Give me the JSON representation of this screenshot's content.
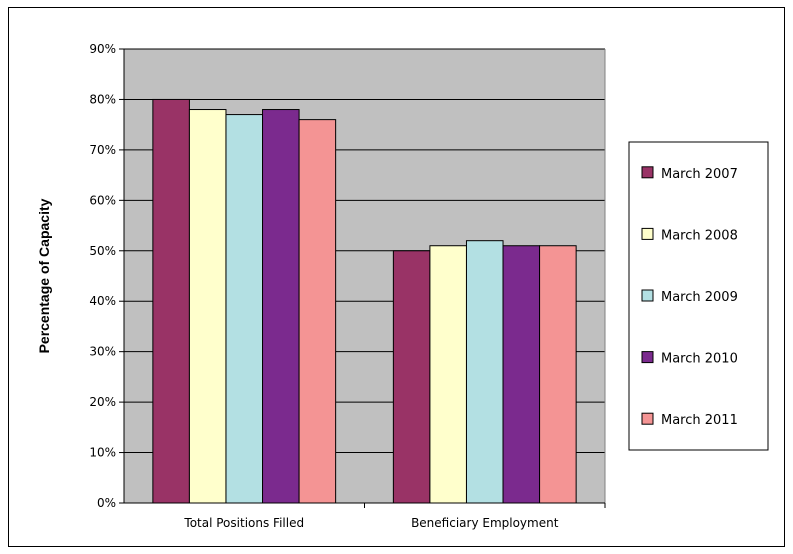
{
  "chart_data": {
    "type": "bar",
    "title": "",
    "xlabel": "",
    "ylabel": "Percentage of Capacity",
    "ylim": [
      0,
      90
    ],
    "yticks": [
      "0%",
      "10%",
      "20%",
      "30%",
      "40%",
      "50%",
      "60%",
      "70%",
      "80%",
      "90%"
    ],
    "categories": [
      "Total Positions Filled",
      "Beneficiary Employment"
    ],
    "series": [
      {
        "name": "March 2007",
        "color": "#993366",
        "values": [
          80,
          50
        ]
      },
      {
        "name": "March 2008",
        "color": "#FFFFCC",
        "values": [
          78,
          51
        ]
      },
      {
        "name": "March 2009",
        "color": "#B3E0E3",
        "values": [
          77,
          52
        ]
      },
      {
        "name": "March 2010",
        "color": "#7B2A8E",
        "values": [
          78,
          51
        ]
      },
      {
        "name": "March 2011",
        "color": "#F49494",
        "values": [
          76,
          51
        ]
      }
    ],
    "grid": true,
    "plot_background": "#C0C0C0",
    "legend_position": "right"
  }
}
